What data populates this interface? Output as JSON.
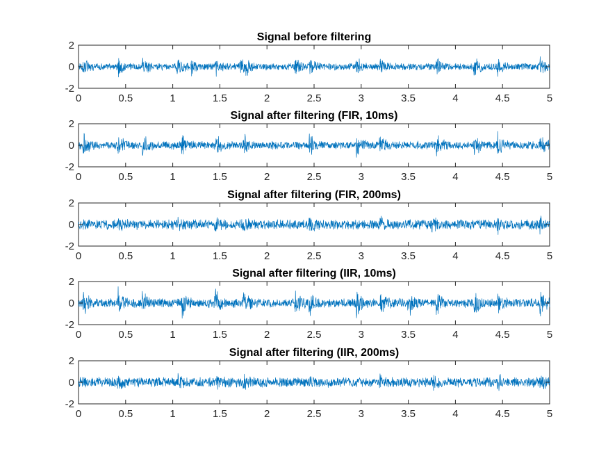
{
  "figure": {
    "trace_color": "#0072BD",
    "axis_color": "#262626"
  },
  "chart_data": [
    {
      "type": "line",
      "title": "Signal before filtering",
      "xlabel": "",
      "ylabel": "",
      "xlim": [
        0,
        5
      ],
      "ylim": [
        -2,
        2
      ],
      "xticks": [
        "0",
        "0.5",
        "1",
        "1.5",
        "2",
        "2.5",
        "3",
        "3.5",
        "4",
        "4.5",
        "5"
      ],
      "yticks": [
        "-2",
        "0",
        "2"
      ],
      "grid": false,
      "signal": {
        "base_amplitude": 0.35,
        "bursts": [
          0.05,
          0.42,
          0.68,
          1.05,
          1.2,
          1.45,
          1.72,
          1.78,
          2.3,
          2.45,
          2.95,
          3.2,
          3.8,
          4.2,
          4.45,
          4.9
        ],
        "burst_amplitude": 0.9
      }
    },
    {
      "type": "line",
      "title": "Signal after filtering (FIR, 10ms)",
      "xlabel": "",
      "ylabel": "",
      "xlim": [
        0,
        5
      ],
      "ylim": [
        -2,
        2
      ],
      "xticks": [
        "0",
        "0.5",
        "1",
        "1.5",
        "2",
        "2.5",
        "3",
        "3.5",
        "4",
        "4.5",
        "5"
      ],
      "yticks": [
        "-2",
        "0",
        "2"
      ],
      "grid": false,
      "signal": {
        "base_amplitude": 0.4,
        "bursts": [
          0.05,
          0.42,
          0.68,
          1.1,
          1.45,
          1.75,
          2.45,
          2.95,
          3.2,
          3.8,
          4.2,
          4.45,
          4.9
        ],
        "burst_amplitude": 1.1
      }
    },
    {
      "type": "line",
      "title": "Signal after filtering (FIR, 200ms)",
      "xlabel": "",
      "ylabel": "",
      "xlim": [
        0,
        5
      ],
      "ylim": [
        -2,
        2
      ],
      "xticks": [
        "0",
        "0.5",
        "1",
        "1.5",
        "2",
        "2.5",
        "3",
        "3.5",
        "4",
        "4.5",
        "5"
      ],
      "yticks": [
        "-2",
        "0",
        "2"
      ],
      "grid": false,
      "signal": {
        "base_amplitude": 0.5,
        "bursts": [
          0.42,
          1.05,
          1.45,
          1.75,
          2.45,
          3.2,
          3.75,
          4.45,
          4.9
        ],
        "burst_amplitude": 0.6
      }
    },
    {
      "type": "line",
      "title": "Signal after filtering (IIR, 10ms)",
      "xlabel": "",
      "ylabel": "",
      "xlim": [
        0,
        5
      ],
      "ylim": [
        -2,
        2
      ],
      "xticks": [
        "0",
        "0.5",
        "1",
        "1.5",
        "2",
        "2.5",
        "3",
        "3.5",
        "4",
        "4.5",
        "5"
      ],
      "yticks": [
        "-2",
        "0",
        "2"
      ],
      "grid": false,
      "signal": {
        "base_amplitude": 0.45,
        "bursts": [
          0.05,
          0.42,
          0.68,
          1.1,
          1.45,
          1.75,
          2.3,
          2.45,
          2.95,
          3.2,
          3.5,
          3.8,
          4.2,
          4.45,
          4.9
        ],
        "burst_amplitude": 1.2
      }
    },
    {
      "type": "line",
      "title": "Signal after filtering (IIR, 200ms)",
      "xlabel": "",
      "ylabel": "",
      "xlim": [
        0,
        5
      ],
      "ylim": [
        -2,
        2
      ],
      "xticks": [
        "0",
        "0.5",
        "1",
        "1.5",
        "2",
        "2.5",
        "3",
        "3.5",
        "4",
        "4.5",
        "5"
      ],
      "yticks": [
        "-2",
        "0",
        "2"
      ],
      "grid": false,
      "signal": {
        "base_amplitude": 0.5,
        "bursts": [
          0.42,
          1.05,
          1.45,
          1.75,
          2.45,
          3.2,
          3.75,
          4.45,
          4.9
        ],
        "burst_amplitude": 0.55
      }
    }
  ]
}
